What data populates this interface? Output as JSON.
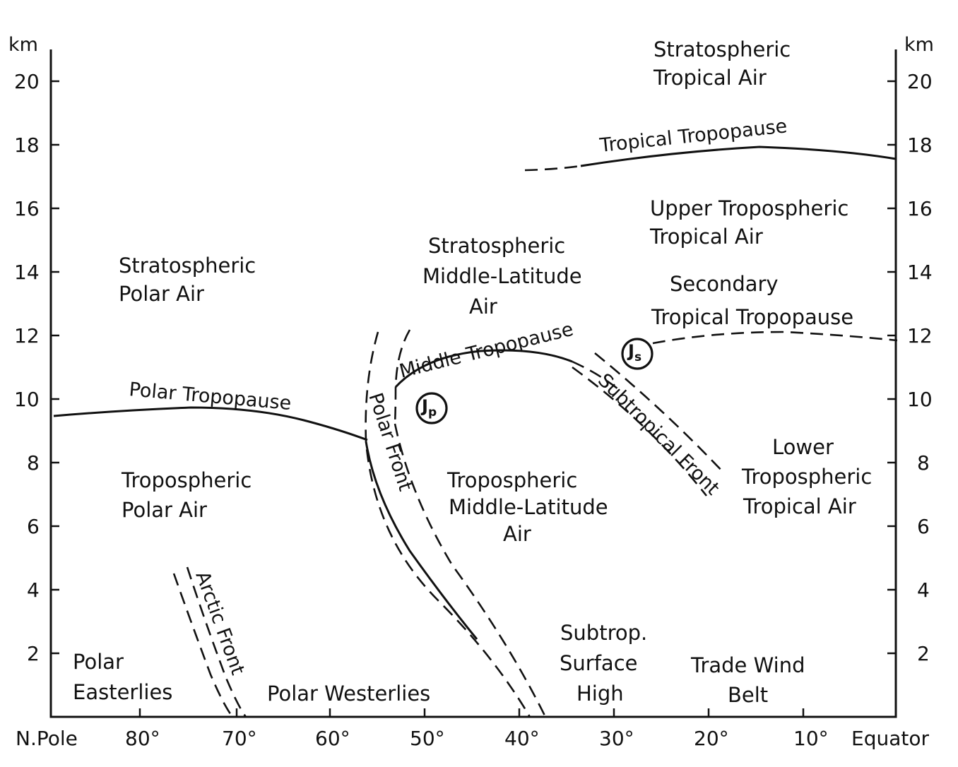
{
  "axes": {
    "left_unit": "km",
    "right_unit": "km",
    "y_ticks": [
      "2",
      "4",
      "6",
      "8",
      "10",
      "12",
      "14",
      "16",
      "18",
      "20"
    ],
    "x_left_end": "N.Pole",
    "x_right_end": "Equator",
    "x_ticks": [
      "80°",
      "70°",
      "60°",
      "50°",
      "40°",
      "30°",
      "20°",
      "10°"
    ]
  },
  "regions": {
    "stratospheric_tropical_air": [
      "Stratospheric",
      "Tropical  Air"
    ],
    "upper_tropospheric_tropical_air": [
      "Upper  Tropospheric",
      "Tropical  Air"
    ],
    "secondary_tropical_tropopause": [
      "Secondary",
      "Tropical  Tropopause"
    ],
    "stratospheric_middle_latitude_air": [
      "Stratospheric",
      "Middle-Latitude",
      "Air"
    ],
    "stratospheric_polar_air": [
      "Stratospheric",
      "Polar  Air"
    ],
    "tropospheric_polar_air": [
      "Tropospheric",
      "Polar  Air"
    ],
    "tropospheric_middle_latitude_air": [
      "Tropospheric",
      "Middle-Latitude",
      "Air"
    ],
    "lower_tropospheric_tropical_air": [
      "Lower",
      "Tropospheric",
      "Tropical  Air"
    ],
    "polar_easterlies": [
      "Polar",
      "Easterlies"
    ],
    "polar_westerlies": "Polar  Westerlies",
    "subtrop_surface_high": [
      "Subtrop.",
      "Surface",
      "High"
    ],
    "trade_wind_belt": [
      "Trade  Wind",
      "Belt"
    ]
  },
  "curves": {
    "tropical_tropopause": "Tropical  Tropopause",
    "polar_tropopause": "Polar  Tropopause",
    "middle_tropopause": "Middle  Tropopause",
    "polar_front": "Polar  Front",
    "subtropical_front": "Subtropical  Front",
    "arctic_front": "Arctic  Front"
  },
  "jets": {
    "polar_jet": "J",
    "polar_jet_sub": "p",
    "subtropical_jet": "J",
    "subtropical_jet_sub": "s"
  }
}
